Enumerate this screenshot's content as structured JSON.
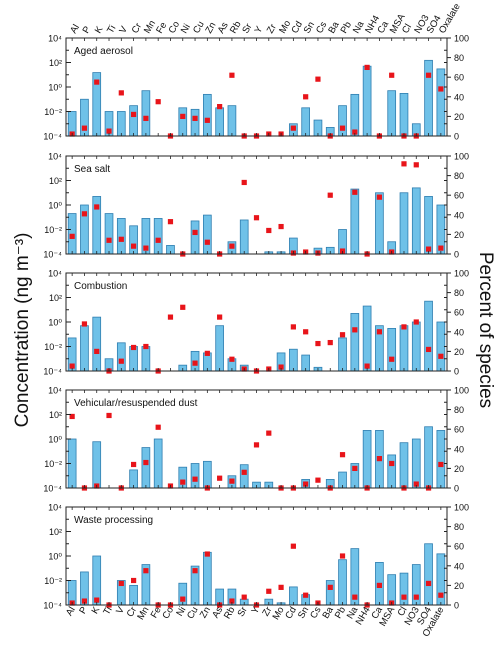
{
  "chart_data": {
    "type": "bar",
    "categories": [
      "Al",
      "P",
      "K",
      "Ti",
      "V",
      "Cr",
      "Mn",
      "Fe",
      "Co",
      "Ni",
      "Cu",
      "Zn",
      "As",
      "Rb",
      "Sr",
      "Y",
      "Zr",
      "Mo",
      "Cd",
      "Sn",
      "Cs",
      "Ba",
      "Pb",
      "Na",
      "NH4",
      "Ca",
      "MSA",
      "Cl",
      "NO3",
      "SO4",
      "Oxalate"
    ],
    "ylabel_left": "Concentration (ng m⁻³)",
    "ylabel_right": "Percent of species",
    "left_axis": {
      "scale": "log",
      "range": [
        0.0001,
        10000
      ],
      "ticks": [
        "10⁻⁴",
        "10⁻²",
        "10⁰",
        "10²",
        "10⁴"
      ]
    },
    "right_axis": {
      "range": [
        0,
        100
      ],
      "ticks": [
        "0",
        "20",
        "40",
        "60",
        "80",
        "100"
      ]
    },
    "bar_color": "#6fc1e8",
    "bar_edge_color": "#2f7eb0",
    "marker_color": "#e8141a",
    "panels": [
      {
        "title": "Aged aerosol",
        "bar_values": [
          0.01,
          0.1,
          15,
          0.01,
          0.01,
          0.03,
          0.5,
          0.0001,
          0.0001,
          0.02,
          0.015,
          0.25,
          0.02,
          0.03,
          0.0001,
          0.0001,
          0.0001,
          0.0001,
          0.001,
          0.02,
          0.002,
          0.0005,
          0.03,
          0.25,
          50,
          0.0001,
          0.5,
          0.3,
          0.001,
          150,
          30
        ],
        "percent_values": [
          2,
          8,
          55,
          5,
          44,
          22,
          18,
          35,
          0,
          20,
          18,
          16,
          30,
          62,
          0,
          0,
          2,
          2,
          8,
          40,
          58,
          0,
          8,
          4,
          70,
          0,
          62,
          0,
          0,
          62,
          48
        ]
      },
      {
        "title": "Sea salt",
        "bar_values": [
          0.2,
          1,
          5,
          0.2,
          0.08,
          0.02,
          0.08,
          0.08,
          0.0005,
          0.0001,
          0.05,
          0.15,
          0.0001,
          0.001,
          0.06,
          0.0001,
          0.00015,
          0.00015,
          0.002,
          0.0001,
          0.0003,
          0.00035,
          0.01,
          20,
          0.0001,
          10,
          0.001,
          10,
          25,
          5,
          1
        ],
        "percent_values": [
          18,
          41,
          48,
          14,
          15,
          8,
          6,
          14,
          33,
          0,
          22,
          12,
          0,
          8,
          73,
          37,
          24,
          28,
          1,
          2,
          1,
          60,
          3,
          63,
          0,
          58,
          2,
          92,
          91,
          5,
          6
        ]
      },
      {
        "title": "Combustion",
        "bar_values": [
          0.05,
          0.5,
          2.5,
          0.001,
          0.02,
          0.01,
          0.01,
          0.0001,
          0.0001,
          0.0003,
          0.004,
          0.003,
          0.5,
          0.001,
          0.0003,
          0.0001,
          0.0001,
          0.003,
          0.006,
          0.002,
          0.0002,
          0.0001,
          0.05,
          5,
          20,
          0.5,
          0.3,
          0.5,
          1,
          50,
          1
        ],
        "percent_values": [
          5,
          48,
          20,
          0,
          10,
          24,
          25,
          0,
          55,
          65,
          8,
          18,
          55,
          12,
          2,
          0,
          2,
          4,
          45,
          40,
          28,
          29,
          37,
          42,
          5,
          40,
          12,
          45,
          50,
          22,
          15
        ]
      },
      {
        "title": "Vehicular/resuspended dust",
        "bar_values": [
          1,
          0.0001,
          0.6,
          0.0001,
          0.0001,
          0.003,
          0.2,
          1,
          0.0001,
          0.005,
          0.01,
          0.015,
          0.0001,
          0.001,
          0.008,
          0.0003,
          0.0003,
          0.0001,
          0.0001,
          0.0005,
          0.0001,
          0.0005,
          0.002,
          0.01,
          5,
          5,
          0.05,
          0.5,
          1,
          10,
          5
        ],
        "percent_values": [
          73,
          0,
          2,
          74,
          0,
          24,
          26,
          62,
          2,
          6,
          9,
          0,
          10,
          7,
          16,
          44,
          56,
          0,
          0,
          4,
          8,
          0,
          34,
          20,
          0,
          30,
          25,
          0,
          4,
          0,
          24
        ]
      },
      {
        "title": "Waste processing",
        "bar_values": [
          0.01,
          0.05,
          1,
          0.0001,
          0.01,
          0.004,
          0.2,
          0.0001,
          0.0001,
          0.006,
          0.15,
          2,
          0.002,
          0.002,
          0.0003,
          0.0001,
          0.0003,
          0.00015,
          0.003,
          0.0007,
          0.0001,
          0.01,
          0.5,
          4,
          0.0001,
          0.3,
          0.03,
          0.04,
          0.2,
          10,
          1.5
        ],
        "percent_values": [
          2,
          4,
          5,
          0,
          22,
          25,
          35,
          0,
          0,
          6,
          35,
          52,
          0,
          4,
          8,
          0,
          14,
          18,
          60,
          10,
          2,
          18,
          50,
          8,
          0,
          20,
          2,
          8,
          8,
          22,
          10
        ]
      }
    ]
  }
}
